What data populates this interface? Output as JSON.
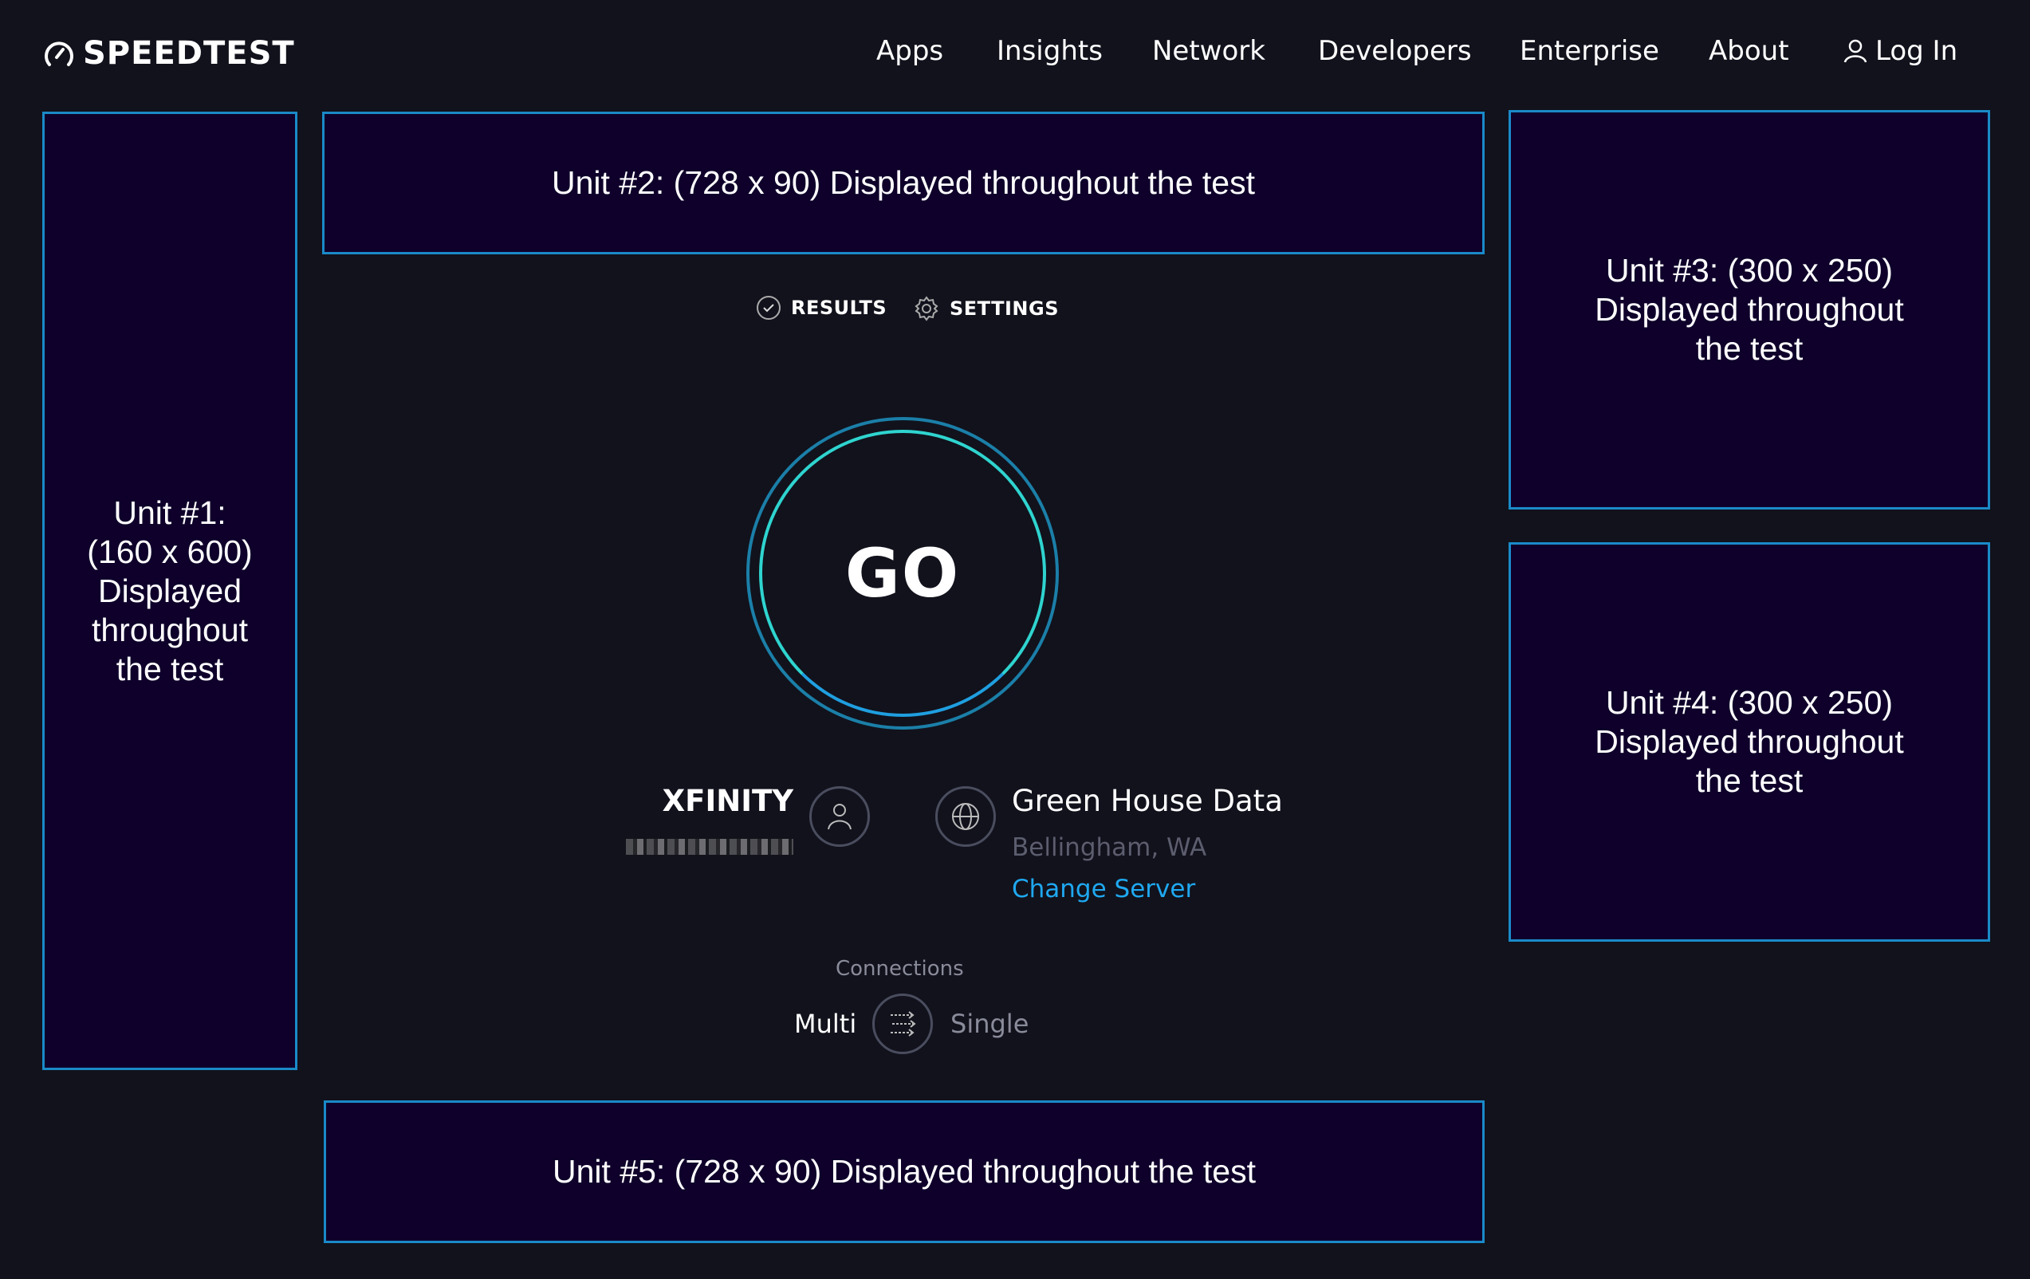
{
  "header": {
    "logo": "SPEEDTEST",
    "nav": [
      "Apps",
      "Insights",
      "Network",
      "Developers",
      "Enterprise",
      "About"
    ],
    "login": "Log In"
  },
  "ads": {
    "unit1": "Unit #1: (160 x 600) Displayed throughout the test",
    "unit2": "Unit #2: (728 x 90) Displayed throughout the test",
    "unit3": "Unit #3: (300 x 250) Displayed throughout the test",
    "unit4": "Unit #4: (300 x 250) Displayed throughout the test",
    "unit5": "Unit #5: (728 x 90) Displayed throughout the test"
  },
  "tabs": {
    "results": "RESULTS",
    "settings": "SETTINGS"
  },
  "go": "GO",
  "isp": {
    "name": "XFINITY"
  },
  "server": {
    "name": "Green House Data",
    "location": "Bellingham, WA",
    "change": "Change Server"
  },
  "connections": {
    "label": "Connections",
    "multi": "Multi",
    "single": "Single"
  },
  "colors": {
    "background": "#11121c",
    "ad_bg": "#0e002a",
    "ad_border": "#1a8ac8",
    "link": "#1fa8f0",
    "ring_outer": "#1b7fa8",
    "ring_inner": "#2fd4cf"
  }
}
